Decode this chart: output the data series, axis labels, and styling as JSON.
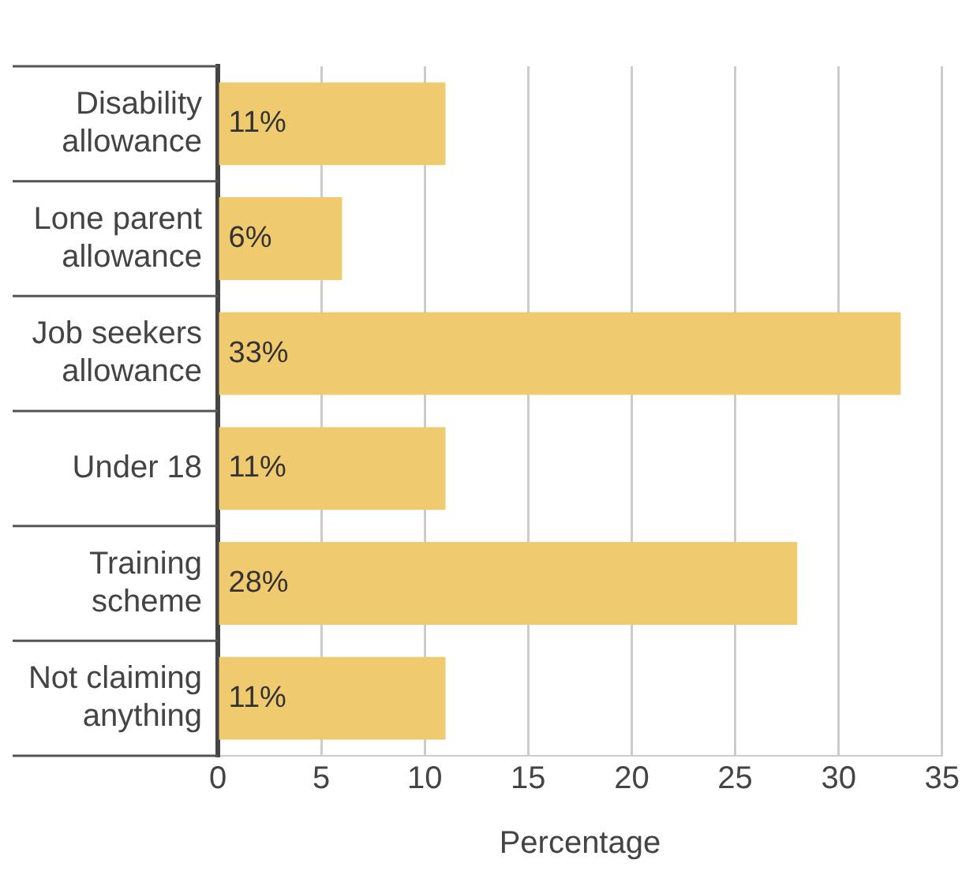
{
  "chart_data": {
    "type": "bar",
    "orientation": "horizontal",
    "xlabel": "Percentage",
    "categories": [
      "Disability allowance",
      "Lone parent allowance",
      "Job seekers allowance",
      "Under 18",
      "Training scheme",
      "Not claiming anything"
    ],
    "values": [
      11,
      6,
      33,
      11,
      28,
      11
    ],
    "value_labels": [
      "11%",
      "6%",
      "33%",
      "11%",
      "28%",
      "11%"
    ],
    "color": "#f0ca6e",
    "xlim": [
      0,
      35
    ],
    "xticks": [
      0,
      5,
      10,
      15,
      20,
      25,
      30,
      35
    ],
    "grid": "x",
    "legend": false
  }
}
